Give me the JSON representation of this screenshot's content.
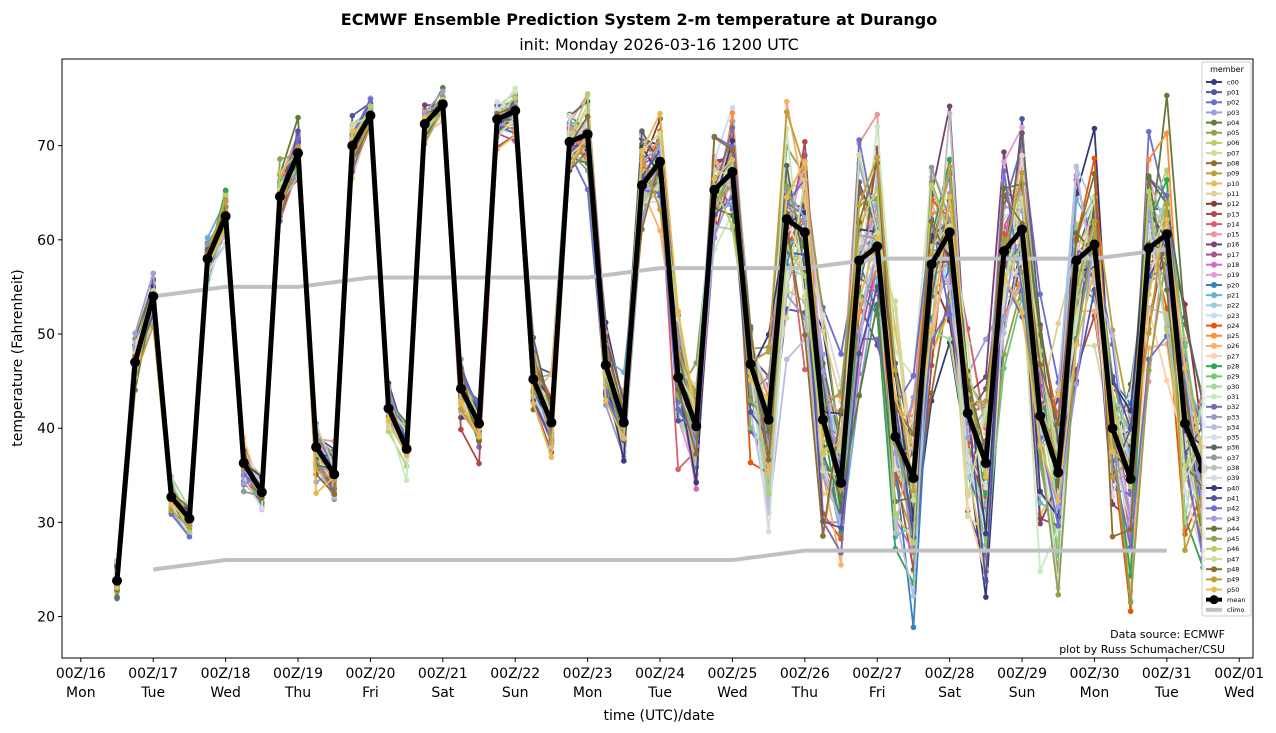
{
  "chart_data": {
    "type": "line",
    "title": "ECMWF Ensemble Prediction System 2-m temperature at Durango",
    "subtitle": "init: Monday 2026-03-16 1200 UTC",
    "xlabel": "time (UTC)/date",
    "ylabel": "temperature (Fahrenheit)",
    "x_unit": "days since 00Z/16",
    "xlim": [
      -0.26,
      16.19
    ],
    "ylim": [
      15.6,
      79.2
    ],
    "grid": false,
    "legend_title": "member",
    "legend_position": "right-inside",
    "x_ticks": [
      {
        "value": 0,
        "line1": "00Z/16",
        "line2": "Mon"
      },
      {
        "value": 1,
        "line1": "00Z/17",
        "line2": "Tue"
      },
      {
        "value": 2,
        "line1": "00Z/18",
        "line2": "Wed"
      },
      {
        "value": 3,
        "line1": "00Z/19",
        "line2": "Thu"
      },
      {
        "value": 4,
        "line1": "00Z/20",
        "line2": "Fri"
      },
      {
        "value": 5,
        "line1": "00Z/21",
        "line2": "Sat"
      },
      {
        "value": 6,
        "line1": "00Z/22",
        "line2": "Sun"
      },
      {
        "value": 7,
        "line1": "00Z/23",
        "line2": "Mon"
      },
      {
        "value": 8,
        "line1": "00Z/24",
        "line2": "Tue"
      },
      {
        "value": 9,
        "line1": "00Z/25",
        "line2": "Wed"
      },
      {
        "value": 10,
        "line1": "00Z/26",
        "line2": "Thu"
      },
      {
        "value": 11,
        "line1": "00Z/27",
        "line2": "Fri"
      },
      {
        "value": 12,
        "line1": "00Z/28",
        "line2": "Sat"
      },
      {
        "value": 13,
        "line1": "00Z/29",
        "line2": "Sun"
      },
      {
        "value": 14,
        "line1": "00Z/30",
        "line2": "Mon"
      },
      {
        "value": 15,
        "line1": "00Z/31",
        "line2": "Tue"
      },
      {
        "value": 16,
        "line1": "00Z/01",
        "line2": "Wed"
      }
    ],
    "y_ticks": [
      20,
      30,
      40,
      50,
      60,
      70
    ],
    "x": [
      0.5,
      0.75,
      1,
      1.25,
      1.5,
      1.75,
      2,
      2.25,
      2.5,
      2.75,
      3,
      3.25,
      3.5,
      3.75,
      4,
      4.25,
      4.5,
      4.75,
      5,
      5.25,
      5.5,
      5.75,
      6,
      6.25,
      6.5,
      6.75,
      7,
      7.25,
      7.5,
      7.75,
      8,
      8.25,
      8.5,
      8.75,
      9,
      9.25,
      9.5,
      9.75,
      10,
      10.25,
      10.5,
      10.75,
      11,
      11.25,
      11.5,
      11.75,
      12,
      12.25,
      12.5,
      12.75,
      13,
      13.25,
      13.5,
      13.75,
      14,
      14.25,
      14.5,
      14.75,
      15,
      15.25,
      15.5
    ],
    "mean": {
      "name": "mean",
      "color": "#000000",
      "values": [
        23.8,
        47.0,
        54.0,
        32.7,
        30.4,
        58.0,
        62.5,
        36.3,
        33.2,
        64.6,
        69.2,
        38.0,
        35.1,
        70.0,
        73.2,
        42.1,
        37.8,
        72.3,
        74.4,
        44.2,
        40.5,
        72.8,
        73.7,
        45.2,
        40.6,
        70.4,
        71.2,
        46.7,
        40.6,
        65.8,
        68.3,
        45.4,
        40.2,
        65.3,
        67.2,
        46.8,
        40.9,
        62.2,
        60.8,
        40.9,
        34.2,
        57.8,
        59.3,
        39.1,
        34.7,
        57.4,
        60.8,
        41.6,
        36.3,
        58.8,
        61.1,
        41.3,
        35.3,
        57.8,
        59.5,
        40.0,
        34.6,
        59.1,
        60.6,
        40.5,
        35.7
      ]
    },
    "climo": {
      "name": "climo",
      "color": "#c0c0c0",
      "upper": {
        "x": [
          1,
          2,
          3,
          4,
          5,
          6,
          7,
          8,
          9,
          10,
          11,
          12,
          13,
          14,
          15
        ],
        "values": [
          54,
          55,
          55,
          56,
          56,
          56,
          56,
          57,
          57,
          57,
          58,
          58,
          58,
          58,
          59
        ]
      },
      "lower": {
        "x": [
          1,
          2,
          3,
          4,
          5,
          6,
          7,
          8,
          9,
          10,
          11,
          12,
          13,
          14,
          15
        ],
        "values": [
          25,
          26,
          26,
          26,
          26,
          26,
          26,
          26,
          26,
          27,
          27,
          27,
          27,
          27,
          27
        ]
      }
    },
    "members": [
      {
        "name": "c00",
        "color": "#393b79"
      },
      {
        "name": "p01",
        "color": "#5254a3"
      },
      {
        "name": "p02",
        "color": "#6b6ecf"
      },
      {
        "name": "p03",
        "color": "#9c9ede"
      },
      {
        "name": "p04",
        "color": "#637939"
      },
      {
        "name": "p05",
        "color": "#8ca252"
      },
      {
        "name": "p06",
        "color": "#b5cf6b"
      },
      {
        "name": "p07",
        "color": "#cedb9c"
      },
      {
        "name": "p08",
        "color": "#8c6d31"
      },
      {
        "name": "p09",
        "color": "#bd9e39"
      },
      {
        "name": "p10",
        "color": "#e7ba52"
      },
      {
        "name": "p11",
        "color": "#e7cb94"
      },
      {
        "name": "p12",
        "color": "#843c39"
      },
      {
        "name": "p13",
        "color": "#ad494a"
      },
      {
        "name": "p14",
        "color": "#d6616b"
      },
      {
        "name": "p15",
        "color": "#e7969c"
      },
      {
        "name": "p16",
        "color": "#7b4173"
      },
      {
        "name": "p17",
        "color": "#a55194"
      },
      {
        "name": "p18",
        "color": "#ce6dbd"
      },
      {
        "name": "p19",
        "color": "#de9ed6"
      },
      {
        "name": "p20",
        "color": "#3182bd"
      },
      {
        "name": "p21",
        "color": "#6baed6"
      },
      {
        "name": "p22",
        "color": "#9ecae1"
      },
      {
        "name": "p23",
        "color": "#c6dbef"
      },
      {
        "name": "p24",
        "color": "#e6550d"
      },
      {
        "name": "p25",
        "color": "#fd8d3c"
      },
      {
        "name": "p26",
        "color": "#fdae6b"
      },
      {
        "name": "p27",
        "color": "#fdd0a2"
      },
      {
        "name": "p28",
        "color": "#31a354"
      },
      {
        "name": "p29",
        "color": "#74c476"
      },
      {
        "name": "p30",
        "color": "#a1d99b"
      },
      {
        "name": "p31",
        "color": "#c7e9c0"
      },
      {
        "name": "p32",
        "color": "#756bb1"
      },
      {
        "name": "p33",
        "color": "#9e9ac8"
      },
      {
        "name": "p34",
        "color": "#bcbddc"
      },
      {
        "name": "p35",
        "color": "#dadaeb"
      },
      {
        "name": "p36",
        "color": "#636363"
      },
      {
        "name": "p37",
        "color": "#969696"
      },
      {
        "name": "p38",
        "color": "#bdbdbd"
      },
      {
        "name": "p39",
        "color": "#d9d9d9"
      },
      {
        "name": "p40",
        "color": "#393b79"
      },
      {
        "name": "p41",
        "color": "#5254a3"
      },
      {
        "name": "p42",
        "color": "#6b6ecf"
      },
      {
        "name": "p43",
        "color": "#9c9ede"
      },
      {
        "name": "p44",
        "color": "#637939"
      },
      {
        "name": "p45",
        "color": "#8ca252"
      },
      {
        "name": "p46",
        "color": "#b5cf6b"
      },
      {
        "name": "p47",
        "color": "#cedb9c"
      },
      {
        "name": "p48",
        "color": "#8c6d31"
      },
      {
        "name": "p49",
        "color": "#bd9e39"
      },
      {
        "name": "p50",
        "color": "#e7ba52"
      }
    ],
    "member_spread_note": "Members deviate from the mean; spread approx ±1-3°F through day 8, growing to roughly ±8-15°F by days 10-15.",
    "member_spread_by_x": [
      1.5,
      2,
      2,
      1.5,
      1.5,
      2,
      2,
      2,
      1.5,
      2.5,
      2.5,
      2.5,
      2,
      2,
      1.5,
      2,
      2,
      1.5,
      1,
      2,
      2,
      2,
      2,
      3,
      3,
      3,
      3,
      4,
      4,
      4,
      4,
      5,
      5,
      5,
      5,
      7,
      7,
      7,
      8,
      9,
      9,
      9,
      9,
      9,
      9,
      9,
      9,
      9,
      9,
      9,
      9,
      9,
      9,
      9,
      9,
      9,
      9,
      9,
      9,
      9,
      9
    ]
  },
  "annotations": {
    "credit_line1": "Data source: ECMWF",
    "credit_line2": "plot by Russ Schumacher/CSU"
  }
}
